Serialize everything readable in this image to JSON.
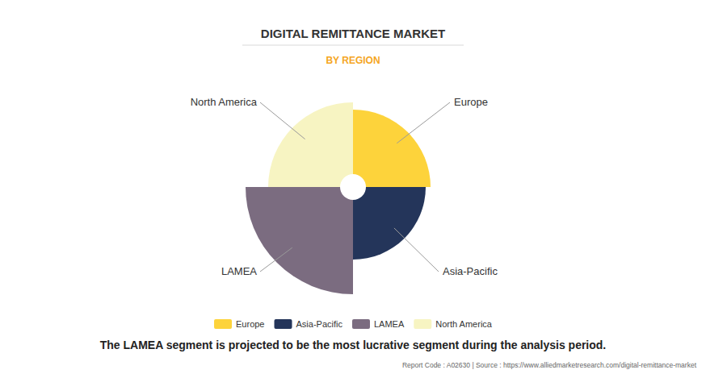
{
  "chart_data": {
    "type": "polar_area",
    "title": "DIGITAL REMITTANCE MARKET",
    "subtitle": "BY REGION",
    "categories": [
      "Europe",
      "Asia-Pacific",
      "LAMEA",
      "North America"
    ],
    "values": [
      96,
      90,
      133,
      105
    ],
    "colors": [
      "#fdd33b",
      "#24355a",
      "#7b6c80",
      "#f7f4c2"
    ],
    "ylim": [
      0,
      140
    ],
    "legend": "bottom",
    "annotations": [
      "The LAMEA segment is projected to be the most lucrative segment during the analysis period.",
      "Report Code : A02630  |  Source : https://www.alliedmarketresearch.com/digital-remittance-market"
    ]
  }
}
